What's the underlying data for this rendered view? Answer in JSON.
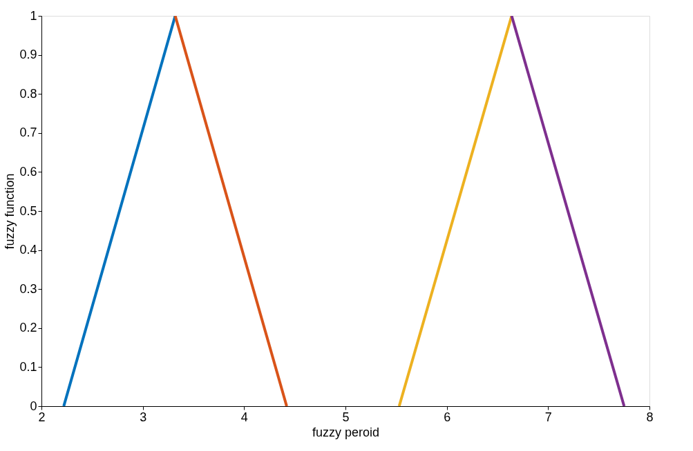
{
  "chart_data": {
    "type": "line",
    "xlabel": "fuzzy peroid",
    "ylabel": "fuzzy function",
    "series": [
      {
        "color": "#0072bd",
        "x": [
          2.22,
          3.32
        ],
        "values": [
          0,
          1
        ]
      },
      {
        "color": "#d95319",
        "x": [
          3.32,
          4.42
        ],
        "values": [
          1,
          0
        ]
      },
      {
        "color": "#edb120",
        "x": [
          5.53,
          6.64
        ],
        "values": [
          0,
          1
        ]
      },
      {
        "color": "#7e2f8e",
        "x": [
          6.64,
          7.75
        ],
        "values": [
          1,
          0
        ]
      }
    ],
    "xlim": [
      2,
      8
    ],
    "xticks": [
      2,
      3,
      4,
      5,
      6,
      7,
      8
    ],
    "ylim": [
      0,
      1
    ],
    "yticks": [
      0,
      0.1,
      0.2,
      0.3,
      0.4,
      0.5,
      0.6,
      0.7,
      0.8,
      0.9,
      1
    ],
    "grid": false,
    "marker": "none",
    "line_style": "solid"
  }
}
